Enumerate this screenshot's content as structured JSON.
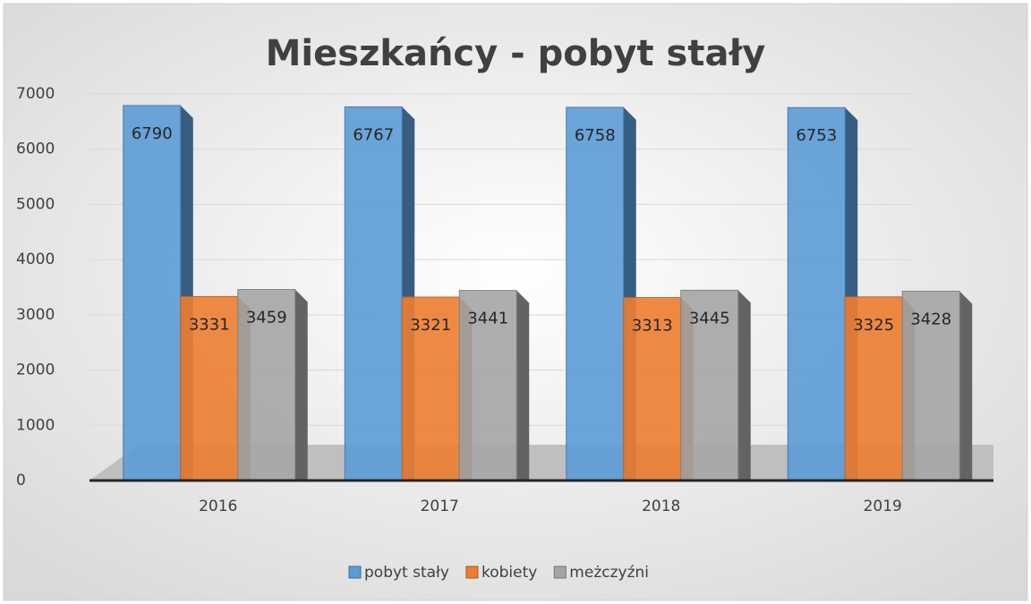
{
  "chart_data": {
    "type": "bar",
    "title": "Mieszkańcy - pobyt stały",
    "categories": [
      "2016",
      "2017",
      "2018",
      "2019"
    ],
    "series": [
      {
        "name": "pobyt stały",
        "color": "#5b9bd5",
        "values": [
          6790,
          6767,
          6758,
          6753
        ]
      },
      {
        "name": "kobiety",
        "color": "#ed7d31",
        "values": [
          3331,
          3321,
          3313,
          3325
        ]
      },
      {
        "name": "meżczyźni",
        "color": "#a5a5a5",
        "values": [
          3459,
          3441,
          3445,
          3428
        ]
      }
    ],
    "ylim": [
      0,
      7000
    ],
    "yticks": [
      0,
      1000,
      2000,
      3000,
      4000,
      5000,
      6000,
      7000
    ],
    "grid": true,
    "legend": "bottom"
  }
}
